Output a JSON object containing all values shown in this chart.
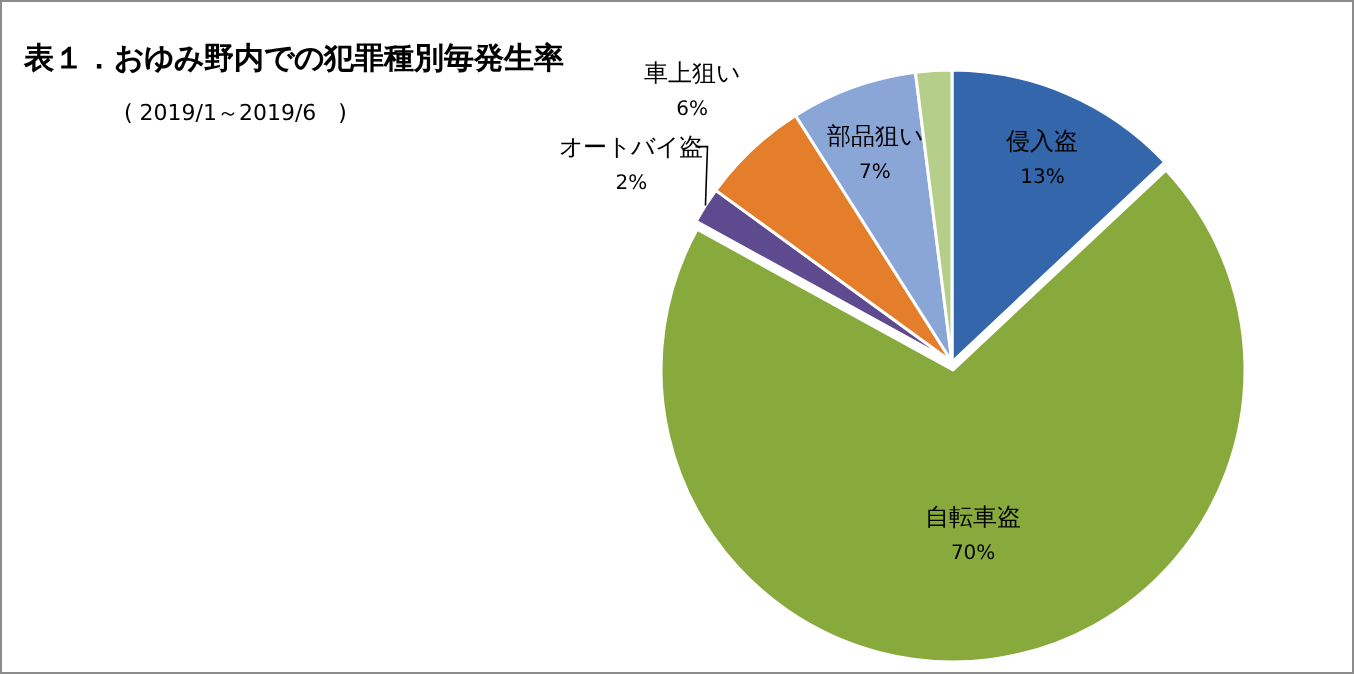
{
  "chart_data": {
    "type": "pie",
    "title": "表１．おゆみ野内での犯罪種別毎発生率",
    "subtitle": "( 2019/1～2019/6　)",
    "categories": [
      "侵入盗",
      "自転車盗",
      "オートバイ盗",
      "車上狙い",
      "部品狙い",
      null
    ],
    "values": [
      13,
      70,
      2,
      6,
      7,
      2
    ],
    "colors": [
      "#3366aa",
      "#88aa3d",
      "#5e4a8e",
      "#e57e2a",
      "#8aa6d6",
      "#b5cf8a"
    ],
    "value_labels": [
      "13%",
      "70%",
      "2%",
      "6%",
      "7%",
      null
    ]
  }
}
